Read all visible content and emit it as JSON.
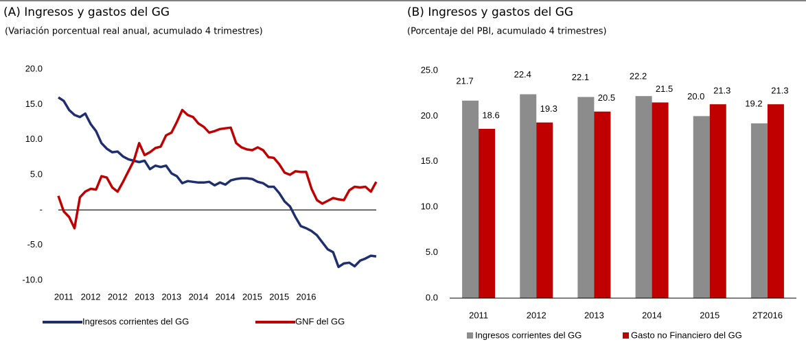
{
  "chart_data": [
    {
      "type": "line",
      "title": "(A) Ingresos y gastos del GG",
      "subtitle": "(Variación porcentual real anual, acumulado 4 trimestres)",
      "categories": [
        null,
        "2011",
        null,
        null,
        null,
        null,
        "2012",
        null,
        null,
        null,
        null,
        "2012",
        null,
        null,
        null,
        null,
        "2013",
        null,
        null,
        null,
        null,
        "2013",
        null,
        null,
        null,
        null,
        "2014",
        null,
        null,
        null,
        null,
        "2014",
        null,
        null,
        null,
        null,
        "2015",
        null,
        null,
        null,
        null,
        "2015",
        null,
        null,
        null,
        null,
        "2016",
        null,
        null,
        null,
        null,
        null,
        null,
        null,
        null,
        null,
        null,
        null,
        null,
        null
      ],
      "series": [
        {
          "name": "Ingresos corrientes del GG",
          "color": "#1f2f6e",
          "values": [
            16.0,
            15.5,
            14.2,
            13.5,
            13.2,
            13.7,
            12.2,
            11.2,
            9.5,
            8.7,
            8.2,
            8.3,
            7.6,
            7.2,
            7.0,
            6.8,
            7.0,
            5.8,
            6.3,
            6.1,
            6.3,
            5.2,
            4.8,
            3.8,
            4.1,
            4.0,
            3.9,
            3.9,
            4.0,
            3.5,
            3.9,
            3.6,
            4.2,
            4.4,
            4.5,
            4.5,
            4.4,
            4.0,
            3.8,
            3.3,
            3.3,
            2.4,
            1.2,
            0.5,
            -1.0,
            -2.3,
            -2.6,
            -3.0,
            -3.6,
            -4.6,
            -5.6,
            -6.0,
            -8.1,
            -7.6,
            -7.5,
            -8.0,
            -7.2,
            -6.9,
            -6.5,
            -6.6
          ]
        },
        {
          "name": "GNF del GG",
          "color": "#c00000",
          "values": [
            2.0,
            -0.2,
            -1.0,
            -2.6,
            1.8,
            2.6,
            3.0,
            2.9,
            4.8,
            4.6,
            3.2,
            2.6,
            4.0,
            5.5,
            7.0,
            9.5,
            7.8,
            8.2,
            8.8,
            9.0,
            10.6,
            11.0,
            12.5,
            14.2,
            13.5,
            13.2,
            12.3,
            11.8,
            11.0,
            11.2,
            11.5,
            11.6,
            11.7,
            9.5,
            8.9,
            8.6,
            8.5,
            8.9,
            8.5,
            7.5,
            7.4,
            6.5,
            5.3,
            5.0,
            5.5,
            5.4,
            5.4,
            3.0,
            1.4,
            0.9,
            1.3,
            1.7,
            1.5,
            1.4,
            2.8,
            3.3,
            3.2,
            3.3,
            2.6,
            4.0
          ]
        }
      ],
      "ylim": [
        -10,
        20
      ],
      "yticks": [
        {
          "value": -10,
          "label": "-10.0"
        },
        {
          "value": -5,
          "label": "-5.0"
        },
        {
          "value": 0,
          "label": "-"
        },
        {
          "value": 5,
          "label": "5.0"
        },
        {
          "value": 10,
          "label": "10.0"
        },
        {
          "value": 15,
          "label": "15.0"
        },
        {
          "value": 20,
          "label": "20.0"
        }
      ],
      "grid": false
    },
    {
      "type": "bar",
      "title": "(B) Ingresos y gastos del GG",
      "subtitle": "(Porcentaje del PBI, acumulado 4 trimestres)",
      "categories": [
        "2011",
        "2012",
        "2013",
        "2014",
        "2015",
        "2T2016"
      ],
      "series": [
        {
          "name": "Ingresos corrientes del GG",
          "color": "#8c8c8c",
          "values": [
            21.7,
            22.4,
            22.1,
            22.2,
            20.0,
            19.2
          ],
          "value_labels": [
            "21.7",
            "22.4",
            "22.1",
            "22.2",
            "20.0",
            "19.2"
          ]
        },
        {
          "name": "Gasto no Financiero del GG",
          "color": "#c00000",
          "values": [
            18.6,
            19.3,
            20.5,
            21.5,
            21.3,
            21.3
          ],
          "value_labels": [
            "18.6",
            "19.3",
            "20.5",
            "21.5",
            "21.3",
            "21.3"
          ]
        }
      ],
      "ylim": [
        0,
        25
      ],
      "yticks": [
        {
          "value": 0,
          "label": "0.0"
        },
        {
          "value": 5,
          "label": "5.0"
        },
        {
          "value": 10,
          "label": "10.0"
        },
        {
          "value": 15,
          "label": "15.0"
        },
        {
          "value": 20,
          "label": "20.0"
        },
        {
          "value": 25,
          "label": "25.0"
        }
      ],
      "grid": false
    }
  ]
}
